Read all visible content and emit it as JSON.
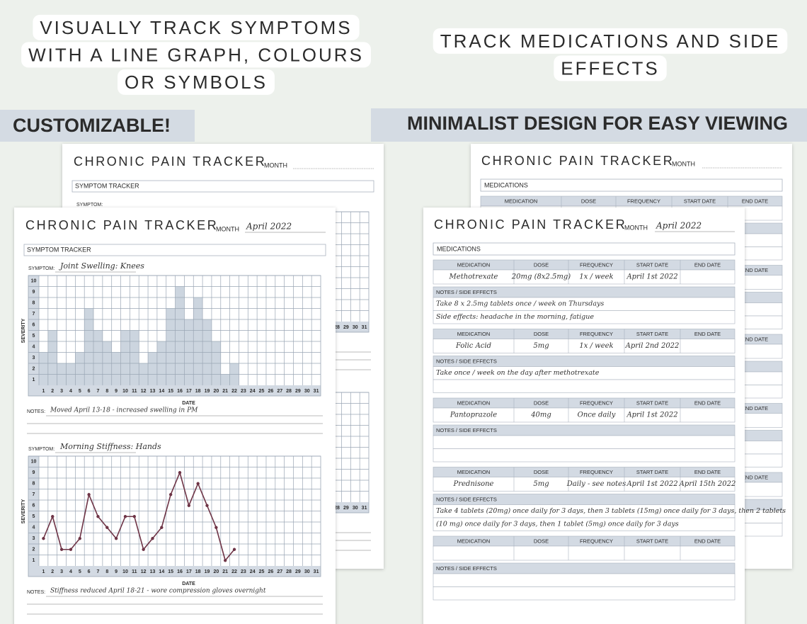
{
  "headlines": {
    "left": [
      "VISUALLY TRACK SYMPTOMS",
      "WITH A LINE GRAPH, COLOURS",
      "OR SYMBOLS"
    ],
    "right": [
      "TRACK MEDICATIONS AND SIDE",
      "EFFECTS"
    ]
  },
  "banners": {
    "left": "CUSTOMIZABLE!",
    "right": "MINIMALIST DESIGN FOR EASY VIEWING"
  },
  "symptom_sheet": {
    "title": "CHRONIC PAIN TRACKER",
    "month_label": "MONTH",
    "month": "April 2022",
    "section": "SYMPTOM TRACKER",
    "symptom_label": "SYMPTOM:",
    "notes_label": "NOTES:",
    "y_axis_label": "SEVERITY",
    "x_axis_label": "DATE",
    "yticks": [
      1,
      2,
      3,
      4,
      5,
      6,
      7,
      8,
      9,
      10
    ],
    "dates": [
      1,
      2,
      3,
      4,
      5,
      6,
      7,
      8,
      9,
      10,
      11,
      12,
      13,
      14,
      15,
      16,
      17,
      18,
      19,
      20,
      21,
      22,
      23,
      24,
      25,
      26,
      27,
      28,
      29,
      30,
      31
    ],
    "charts": [
      {
        "type": "bar",
        "symptom": "Joint Swelling: Knees",
        "color": "#ccd5df",
        "values": [
          3,
          5,
          2,
          2,
          3,
          7,
          5,
          4,
          3,
          5,
          5,
          2,
          3,
          4,
          7,
          9,
          6,
          8,
          6,
          4,
          1,
          2
        ],
        "notes": "Moved April 13-18 - increased swelling in PM"
      },
      {
        "type": "line",
        "symptom": "Morning Stiffness: Hands",
        "color": "#6e3446",
        "values": [
          3,
          5,
          2,
          2,
          3,
          7,
          5,
          4,
          3,
          5,
          5,
          2,
          3,
          4,
          7,
          9,
          6,
          8,
          6,
          4,
          1,
          2
        ],
        "notes": "Stiffness reduced April 18-21 - wore compression gloves overnight"
      }
    ]
  },
  "medication_sheet": {
    "title": "CHRONIC PAIN TRACKER",
    "month_label": "MONTH",
    "month": "April 2022",
    "section": "MEDICATIONS",
    "columns": [
      "MEDICATION",
      "DOSE",
      "FREQUENCY",
      "START DATE",
      "END DATE"
    ],
    "notes_label": "NOTES / SIDE EFFECTS",
    "entries": [
      {
        "medication": "Methotrexate",
        "dose": "20mg (8x2.5mg)",
        "frequency": "1x / week",
        "start_date": "April 1st 2022",
        "notes": [
          "Take 8 x 2.5mg tablets once / week on Thursdays",
          "Side effects: headache in the morning, fatigue"
        ]
      },
      {
        "medication": "Folic Acid",
        "dose": "5mg",
        "frequency": "1x / week",
        "start_date": "April 2nd 2022",
        "notes": [
          "Take once / week on the day after methotrexate"
        ]
      },
      {
        "medication": "Pantoprazole",
        "dose": "40mg",
        "frequency": "Once daily",
        "start_date": "April 1st 2022"
      },
      {
        "medication": "Prednisone",
        "dose": "5mg",
        "frequency": "Daily - see notes",
        "start_date": "April 1st 2022",
        "end_date": "April 15th 2022",
        "notes": [
          "Take 4 tablets (20mg) once daily for 3 days, then 3 tablets (15mg) once daily for 3 days, then 2 tablets",
          "(10 mg) once daily for 3 days, then 1 tablet (5mg) once daily for 3 days"
        ]
      }
    ]
  }
}
